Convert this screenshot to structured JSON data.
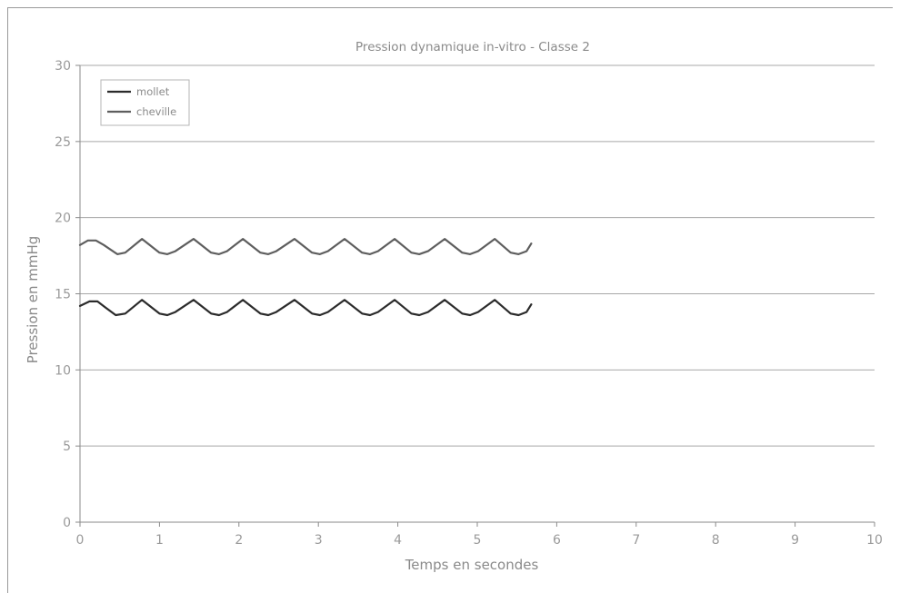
{
  "chart_data": {
    "type": "line",
    "title": "Pression dynamique in-vitro - Classe 2",
    "xlabel": "Temps en secondes",
    "ylabel": "Pression en mmHg",
    "xlim": [
      0,
      10
    ],
    "ylim": [
      0,
      30
    ],
    "xticks": [
      0,
      1,
      2,
      3,
      4,
      5,
      6,
      7,
      8,
      9,
      10
    ],
    "yticks": [
      0,
      5,
      10,
      15,
      20,
      25,
      30
    ],
    "grid": "horizontal",
    "legend_position": "top-left",
    "series": [
      {
        "name": "mollet",
        "color": "#2b2b2b",
        "x": [
          0,
          0.12,
          0.22,
          0.32,
          0.45,
          0.57,
          0.78,
          1.0,
          1.1,
          1.2,
          1.43,
          1.65,
          1.75,
          1.85,
          2.05,
          2.27,
          2.37,
          2.47,
          2.7,
          2.92,
          3.02,
          3.12,
          3.33,
          3.55,
          3.65,
          3.75,
          3.96,
          4.17,
          4.27,
          4.38,
          4.59,
          4.81,
          4.91,
          5.01,
          5.22,
          5.42,
          5.52,
          5.62,
          5.68
        ],
        "y": [
          14.2,
          14.5,
          14.5,
          14.1,
          13.6,
          13.7,
          14.6,
          13.7,
          13.6,
          13.8,
          14.6,
          13.7,
          13.6,
          13.8,
          14.6,
          13.7,
          13.6,
          13.8,
          14.6,
          13.7,
          13.6,
          13.8,
          14.6,
          13.7,
          13.6,
          13.8,
          14.6,
          13.7,
          13.6,
          13.8,
          14.6,
          13.7,
          13.6,
          13.8,
          14.6,
          13.7,
          13.6,
          13.8,
          14.3
        ]
      },
      {
        "name": "cheville",
        "color": "#5e5e5e",
        "x": [
          0,
          0.1,
          0.2,
          0.3,
          0.47,
          0.57,
          0.78,
          1.0,
          1.1,
          1.2,
          1.43,
          1.65,
          1.75,
          1.85,
          2.05,
          2.27,
          2.37,
          2.47,
          2.7,
          2.92,
          3.02,
          3.12,
          3.33,
          3.55,
          3.65,
          3.75,
          3.96,
          4.17,
          4.27,
          4.38,
          4.59,
          4.81,
          4.91,
          5.01,
          5.22,
          5.42,
          5.52,
          5.62,
          5.68
        ],
        "y": [
          18.2,
          18.5,
          18.5,
          18.2,
          17.6,
          17.7,
          18.6,
          17.7,
          17.6,
          17.8,
          18.6,
          17.7,
          17.6,
          17.8,
          18.6,
          17.7,
          17.6,
          17.8,
          18.6,
          17.7,
          17.6,
          17.8,
          18.6,
          17.7,
          17.6,
          17.8,
          18.6,
          17.7,
          17.6,
          17.8,
          18.6,
          17.7,
          17.6,
          17.8,
          18.6,
          17.7,
          17.6,
          17.8,
          18.3
        ]
      }
    ]
  }
}
